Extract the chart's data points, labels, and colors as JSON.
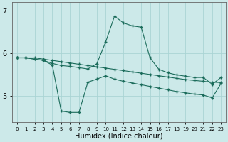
{
  "title": "",
  "xlabel": "Humidex (Indice chaleur)",
  "ylabel": "",
  "background_color": "#cce9e9",
  "grid_color": "#aad4d4",
  "line_color": "#1a6b5a",
  "x_values": [
    0,
    1,
    2,
    3,
    4,
    5,
    6,
    7,
    8,
    9,
    10,
    11,
    12,
    13,
    14,
    15,
    16,
    17,
    18,
    19,
    20,
    21,
    22,
    23
  ],
  "line1_y": [
    5.9,
    5.9,
    5.9,
    5.87,
    5.84,
    5.81,
    5.78,
    5.75,
    5.72,
    5.69,
    5.66,
    5.63,
    5.6,
    5.57,
    5.54,
    5.51,
    5.48,
    5.45,
    5.42,
    5.39,
    5.37,
    5.35,
    5.33,
    5.32
  ],
  "line2_y": [
    5.9,
    5.9,
    5.87,
    5.84,
    5.77,
    5.72,
    5.7,
    5.67,
    5.64,
    5.76,
    6.27,
    6.88,
    6.72,
    6.65,
    6.62,
    5.9,
    5.63,
    5.55,
    5.5,
    5.47,
    5.44,
    5.44,
    5.28,
    5.44
  ],
  "line3_y": [
    5.9,
    5.9,
    5.87,
    5.84,
    5.73,
    4.65,
    4.62,
    4.62,
    5.33,
    5.4,
    5.48,
    5.4,
    5.35,
    5.31,
    5.27,
    5.23,
    5.19,
    5.15,
    5.11,
    5.08,
    5.05,
    5.03,
    4.96,
    5.3
  ],
  "ylim": [
    4.4,
    7.2
  ],
  "yticks": [
    5,
    6,
    7
  ],
  "ytick_labels": [
    "5",
    "6",
    "7"
  ],
  "figsize": [
    3.2,
    2.0
  ],
  "dpi": 100
}
